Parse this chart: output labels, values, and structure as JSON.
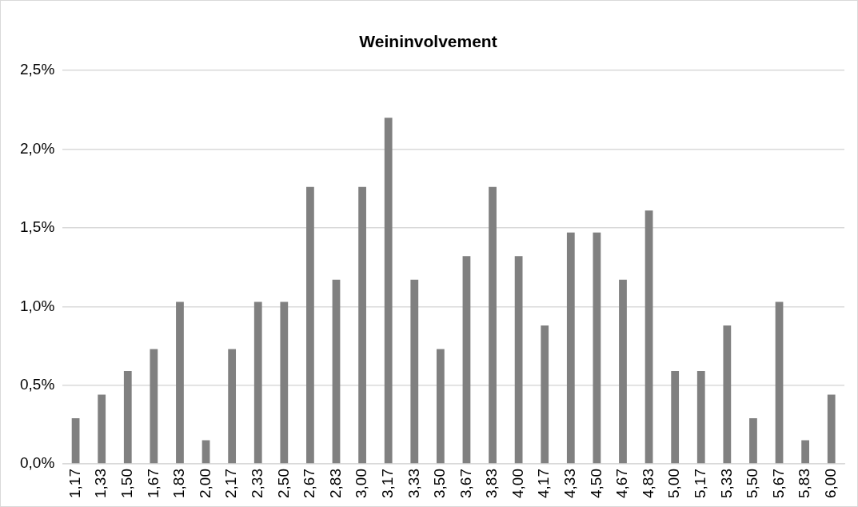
{
  "chart_data": {
    "type": "bar",
    "title": "Weininvolvement",
    "categories": [
      "1,17",
      "1,33",
      "1,50",
      "1,67",
      "1,83",
      "2,00",
      "2,17",
      "2,33",
      "2,50",
      "2,67",
      "2,83",
      "3,00",
      "3,17",
      "3,33",
      "3,50",
      "3,67",
      "3,83",
      "4,00",
      "4,17",
      "4,33",
      "4,50",
      "4,67",
      "4,83",
      "5,00",
      "5,17",
      "5,33",
      "5,50",
      "5,67",
      "5,83",
      "6,00"
    ],
    "values": [
      0.29,
      0.44,
      0.59,
      0.73,
      1.03,
      0.15,
      0.73,
      1.03,
      1.03,
      1.76,
      1.17,
      1.76,
      2.2,
      1.17,
      0.73,
      1.32,
      1.76,
      1.32,
      0.88,
      1.47,
      1.47,
      1.17,
      1.61,
      0.59,
      0.59,
      0.88,
      0.29,
      1.03,
      0.15,
      0.44
    ],
    "color": "#808080",
    "ylim": [
      0,
      2.5
    ],
    "yticks": [
      {
        "value": 0,
        "label": "0,0%"
      },
      {
        "value": 0.5,
        "label": "0,5%"
      },
      {
        "value": 1,
        "label": "1,0%"
      },
      {
        "value": 1.5,
        "label": "1,5%"
      },
      {
        "value": 2,
        "label": "2,0%"
      },
      {
        "value": 2.5,
        "label": "2,5%"
      }
    ],
    "grid": "y",
    "legend": false
  }
}
